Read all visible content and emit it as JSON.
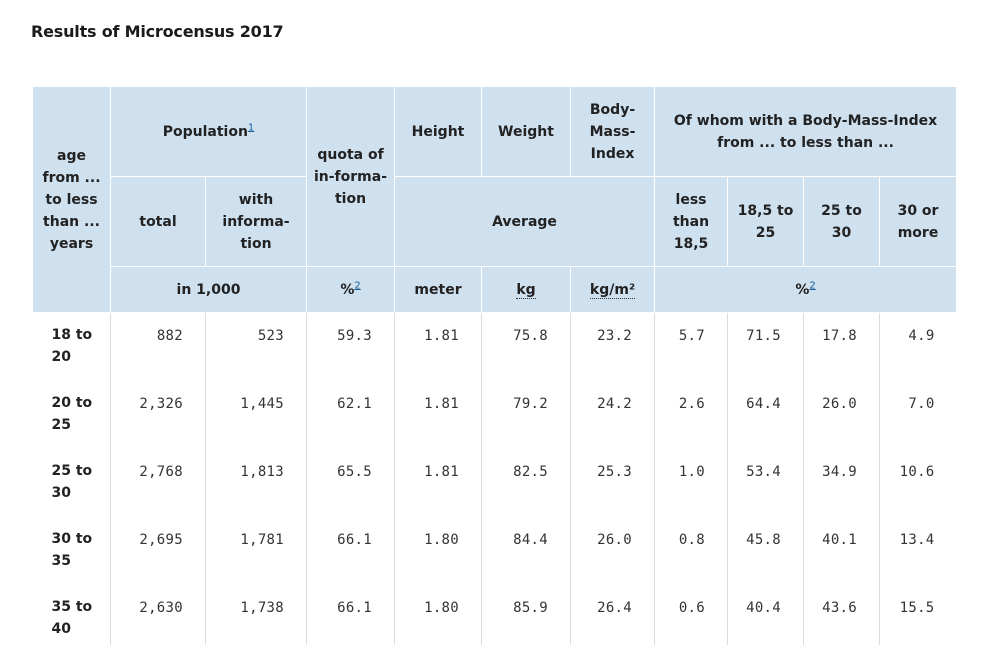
{
  "title": "Results of Microcensus 2017",
  "header": {
    "age": "age from ... to less than ... years",
    "population": "Population",
    "population_note": "1",
    "quota": "quota of in-forma-tion",
    "height": "Height",
    "weight": "Weight",
    "bmi": "Body-Mass-Index",
    "bmi_group": "Of whom with a Body-Mass-Index from ... to less than ...",
    "total": "total",
    "with_information": "with informa-tion",
    "average": "Average",
    "less_than_18_5": "less than 18,5",
    "r18_5_to_25": "18,5 to 25",
    "r25_to_30": "25 to 30",
    "r30_or_more": "30 or more",
    "unit_population": "in 1,000",
    "unit_quota": "%",
    "unit_quota_note": "2",
    "unit_height": "meter",
    "unit_weight": "kg",
    "unit_bmi": "kg/m²",
    "unit_bmi_groups": "%",
    "unit_bmi_groups_note": "2"
  },
  "rows": [
    {
      "age": "18 to 20",
      "total": "882",
      "with_info": "523",
      "quota": "59.3",
      "height": "1.81",
      "weight": "75.8",
      "bmi": "23.2",
      "lt18_5": "5.7",
      "b18_5_25": "71.5",
      "b25_30": "17.8",
      "ge30": "4.9"
    },
    {
      "age": "20 to 25",
      "total": "2,326",
      "with_info": "1,445",
      "quota": "62.1",
      "height": "1.81",
      "weight": "79.2",
      "bmi": "24.2",
      "lt18_5": "2.6",
      "b18_5_25": "64.4",
      "b25_30": "26.0",
      "ge30": "7.0"
    },
    {
      "age": "25 to 30",
      "total": "2,768",
      "with_info": "1,813",
      "quota": "65.5",
      "height": "1.81",
      "weight": "82.5",
      "bmi": "25.3",
      "lt18_5": "1.0",
      "b18_5_25": "53.4",
      "b25_30": "34.9",
      "ge30": "10.6"
    },
    {
      "age": "30 to 35",
      "total": "2,695",
      "with_info": "1,781",
      "quota": "66.1",
      "height": "1.80",
      "weight": "84.4",
      "bmi": "26.0",
      "lt18_5": "0.8",
      "b18_5_25": "45.8",
      "b25_30": "40.1",
      "ge30": "13.4"
    },
    {
      "age": "35 to 40",
      "total": "2,630",
      "with_info": "1,738",
      "quota": "66.1",
      "height": "1.80",
      "weight": "85.9",
      "bmi": "26.4",
      "lt18_5": "0.6",
      "b18_5_25": "40.4",
      "b25_30": "43.6",
      "ge30": "15.5"
    }
  ]
}
